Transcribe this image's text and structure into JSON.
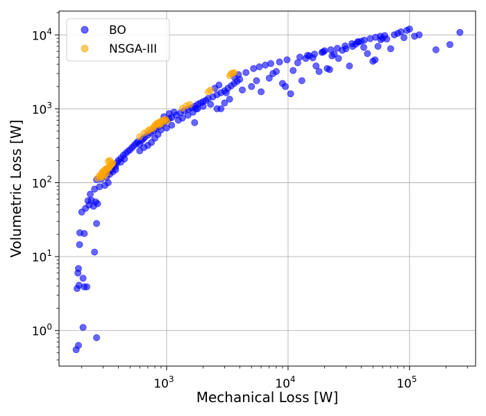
{
  "chart_data": {
    "type": "scatter",
    "title": "",
    "xlabel": "Mechanical Loss [W]",
    "ylabel": "Volumetric Loss [W]",
    "xscale": "log",
    "yscale": "log",
    "xlim": [
      130,
      350000
    ],
    "ylim": [
      0.33,
      21000
    ],
    "grid": true,
    "legend_position": "top-left",
    "x_ticks": [
      {
        "value": 1000,
        "base": "10",
        "exp": "3"
      },
      {
        "value": 10000,
        "base": "10",
        "exp": "4"
      },
      {
        "value": 100000,
        "base": "10",
        "exp": "5"
      }
    ],
    "y_ticks": [
      {
        "value": 1,
        "base": "10",
        "exp": "0"
      },
      {
        "value": 10,
        "base": "10",
        "exp": "1"
      },
      {
        "value": 100,
        "base": "10",
        "exp": "2"
      },
      {
        "value": 1000,
        "base": "10",
        "exp": "3"
      },
      {
        "value": 10000,
        "base": "10",
        "exp": "4"
      }
    ],
    "series": [
      {
        "name": "BO",
        "color": "#0000ff",
        "points": [
          [
            180,
            0.55
          ],
          [
            188,
            0.63
          ],
          [
            205,
            1.1
          ],
          [
            265,
            0.8
          ],
          [
            183,
            3.7
          ],
          [
            190,
            4.1
          ],
          [
            210,
            3.9
          ],
          [
            220,
            3.9
          ],
          [
            205,
            5.1
          ],
          [
            186,
            6.0
          ],
          [
            188,
            6.9
          ],
          [
            255,
            11.5
          ],
          [
            192,
            14.5
          ],
          [
            193,
            21
          ],
          [
            210,
            20.5
          ],
          [
            265,
            28
          ],
          [
            200,
            40
          ],
          [
            215,
            45
          ],
          [
            230,
            50
          ],
          [
            225,
            57
          ],
          [
            250,
            48
          ],
          [
            260,
            55
          ],
          [
            270,
            52
          ],
          [
            240,
            58
          ],
          [
            235,
            70
          ],
          [
            255,
            82
          ],
          [
            280,
            88
          ],
          [
            265,
            110
          ],
          [
            290,
            112
          ],
          [
            300,
            125
          ],
          [
            320,
            118
          ],
          [
            340,
            130
          ],
          [
            360,
            140
          ],
          [
            380,
            150
          ],
          [
            310,
            92
          ],
          [
            330,
            100
          ],
          [
            350,
            165
          ],
          [
            370,
            175
          ],
          [
            390,
            185
          ],
          [
            400,
            200
          ],
          [
            420,
            215
          ],
          [
            440,
            235
          ],
          [
            460,
            250
          ],
          [
            480,
            265
          ],
          [
            500,
            280
          ],
          [
            520,
            300
          ],
          [
            540,
            320
          ],
          [
            560,
            340
          ],
          [
            580,
            360
          ],
          [
            600,
            330
          ],
          [
            620,
            370
          ],
          [
            640,
            390
          ],
          [
            660,
            410
          ],
          [
            700,
            440
          ],
          [
            740,
            470
          ],
          [
            780,
            500
          ],
          [
            820,
            540
          ],
          [
            860,
            580
          ],
          [
            900,
            600
          ],
          [
            950,
            650
          ],
          [
            1000,
            700
          ],
          [
            1050,
            740
          ],
          [
            1100,
            760
          ],
          [
            1200,
            820
          ],
          [
            1300,
            880
          ],
          [
            1400,
            940
          ],
          [
            1500,
            980
          ],
          [
            1600,
            1030
          ],
          [
            1700,
            1080
          ],
          [
            1800,
            1150
          ],
          [
            1900,
            1200
          ],
          [
            2000,
            1250
          ],
          [
            2100,
            1300
          ],
          [
            2200,
            1380
          ],
          [
            2400,
            1450
          ],
          [
            2600,
            1550
          ],
          [
            2800,
            1650
          ],
          [
            3000,
            1750
          ],
          [
            3200,
            1900
          ],
          [
            3400,
            2050
          ],
          [
            3600,
            2200
          ],
          [
            3800,
            2350
          ],
          [
            4000,
            2500
          ],
          [
            1750,
            1000
          ],
          [
            2000,
            1080
          ],
          [
            2300,
            1150
          ],
          [
            2600,
            1000
          ],
          [
            3000,
            1200
          ],
          [
            3300,
            1350
          ],
          [
            1700,
            650
          ],
          [
            2800,
            1000
          ],
          [
            3100,
            1650
          ],
          [
            2500,
            1900
          ],
          [
            2700,
            2100
          ],
          [
            3600,
            2700
          ],
          [
            3900,
            2900
          ],
          [
            4500,
            3100
          ],
          [
            4200,
            1800
          ],
          [
            5000,
            2000
          ],
          [
            5500,
            2400
          ],
          [
            6000,
            1700
          ],
          [
            7000,
            2600
          ],
          [
            7500,
            3000
          ],
          [
            8000,
            3200
          ],
          [
            9000,
            2200
          ],
          [
            9500,
            2000
          ],
          [
            10500,
            1600
          ],
          [
            11000,
            3300
          ],
          [
            12000,
            4200
          ],
          [
            13000,
            2400
          ],
          [
            14000,
            4800
          ],
          [
            15000,
            5200
          ],
          [
            16000,
            4900
          ],
          [
            17000,
            3800
          ],
          [
            18000,
            3200
          ],
          [
            19000,
            5800
          ],
          [
            20000,
            6100
          ],
          [
            21000,
            3500
          ],
          [
            22000,
            3400
          ],
          [
            23000,
            5200
          ],
          [
            24000,
            5500
          ],
          [
            26000,
            4800
          ],
          [
            28000,
            6200
          ],
          [
            30000,
            6500
          ],
          [
            32000,
            3800
          ],
          [
            34000,
            7000
          ],
          [
            36000,
            7500
          ],
          [
            38000,
            8000
          ],
          [
            40000,
            8200
          ],
          [
            42000,
            6800
          ],
          [
            45000,
            5600
          ],
          [
            50000,
            4400
          ],
          [
            52000,
            4600
          ],
          [
            55000,
            7000
          ],
          [
            58000,
            8600
          ],
          [
            60000,
            9000
          ],
          [
            65000,
            8800
          ],
          [
            70000,
            6500
          ],
          [
            75000,
            10000
          ],
          [
            80000,
            10500
          ],
          [
            85000,
            11000
          ],
          [
            90000,
            9200
          ],
          [
            95000,
            11500
          ],
          [
            100000,
            12000
          ],
          [
            110000,
            9600
          ],
          [
            120000,
            10000
          ],
          [
            165000,
            6300
          ],
          [
            215000,
            7400
          ],
          [
            260000,
            10800
          ],
          [
            900,
            520
          ],
          [
            1000,
            550
          ],
          [
            1100,
            600
          ],
          [
            1250,
            700
          ],
          [
            1350,
            750
          ],
          [
            1500,
            820
          ],
          [
            1650,
            900
          ],
          [
            1800,
            1000
          ],
          [
            950,
            780
          ],
          [
            1050,
            860
          ],
          [
            1150,
            900
          ],
          [
            600,
            270
          ],
          [
            650,
            300
          ],
          [
            700,
            320
          ],
          [
            750,
            350
          ],
          [
            800,
            400
          ],
          [
            850,
            450
          ],
          [
            450,
            210
          ],
          [
            420,
            190
          ],
          [
            380,
            165
          ],
          [
            350,
            150
          ],
          [
            330,
            140
          ],
          [
            310,
            135
          ],
          [
            5200,
            3500
          ],
          [
            5800,
            3700
          ],
          [
            6500,
            3900
          ],
          [
            7200,
            4100
          ],
          [
            8500,
            4300
          ],
          [
            9800,
            4600
          ],
          [
            12500,
            5000
          ],
          [
            14500,
            5300
          ],
          [
            16500,
            5500
          ],
          [
            19500,
            5900
          ],
          [
            22500,
            6300
          ],
          [
            25500,
            6600
          ],
          [
            29500,
            7100
          ],
          [
            33500,
            7600
          ],
          [
            37500,
            8100
          ],
          [
            42500,
            8500
          ],
          [
            47500,
            8900
          ],
          [
            52500,
            9300
          ],
          [
            57500,
            9600
          ],
          [
            62500,
            9800
          ]
        ]
      },
      {
        "name": "NSGA-III",
        "color": "#ffa500",
        "points": [
          [
            270,
            115
          ],
          [
            280,
            125
          ],
          [
            290,
            132
          ],
          [
            295,
            138
          ],
          [
            300,
            140
          ],
          [
            305,
            145
          ],
          [
            310,
            150
          ],
          [
            315,
            148
          ],
          [
            320,
            155
          ],
          [
            325,
            152
          ],
          [
            330,
            160
          ],
          [
            335,
            158
          ],
          [
            340,
            165
          ],
          [
            345,
            170
          ],
          [
            350,
            175
          ],
          [
            355,
            180
          ],
          [
            360,
            185
          ],
          [
            330,
            195
          ],
          [
            340,
            200
          ],
          [
            300,
            120
          ],
          [
            310,
            128
          ],
          [
            320,
            135
          ],
          [
            285,
            118
          ],
          [
            295,
            125
          ],
          [
            600,
            420
          ],
          [
            650,
            470
          ],
          [
            700,
            500
          ],
          [
            720,
            520
          ],
          [
            780,
            560
          ],
          [
            800,
            600
          ],
          [
            820,
            620
          ],
          [
            840,
            640
          ],
          [
            860,
            650
          ],
          [
            880,
            660
          ],
          [
            900,
            680
          ],
          [
            920,
            690
          ],
          [
            950,
            700
          ],
          [
            980,
            720
          ],
          [
            850,
            630
          ],
          [
            870,
            600
          ],
          [
            900,
            630
          ],
          [
            760,
            540
          ],
          [
            1000,
            680
          ],
          [
            1350,
            1020
          ],
          [
            1450,
            1100
          ],
          [
            1550,
            1150
          ],
          [
            2200,
            1700
          ],
          [
            2300,
            1800
          ],
          [
            3300,
            2800
          ],
          [
            3400,
            3000
          ],
          [
            3500,
            3050
          ],
          [
            3600,
            3100
          ]
        ]
      }
    ]
  }
}
